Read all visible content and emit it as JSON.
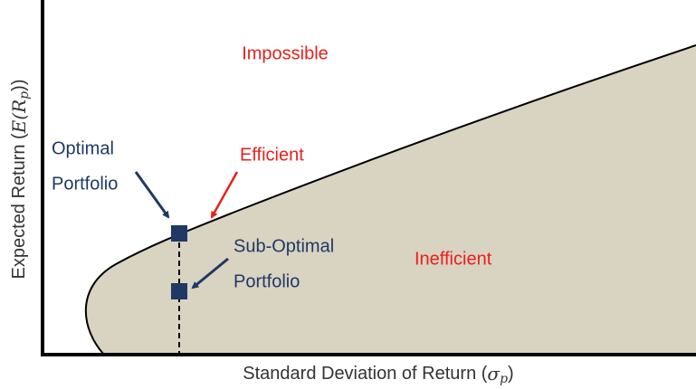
{
  "regions": {
    "impossible": "Impossible",
    "efficient": "Efficient",
    "inefficient": "Inefficient"
  },
  "points": {
    "optimal": [
      "Optimal",
      "Portfolio"
    ],
    "sub_optimal": [
      "Sub-Optimal",
      "Portfolio"
    ]
  },
  "x_axis": {
    "prefix": "Standard Deviation of Return (",
    "math": "σ",
    "sub": "p",
    "suffix": ")"
  },
  "y_axis": {
    "prefix": "Expected Return (",
    "math": "E(R",
    "sub": "p",
    "suffix": "))"
  }
}
